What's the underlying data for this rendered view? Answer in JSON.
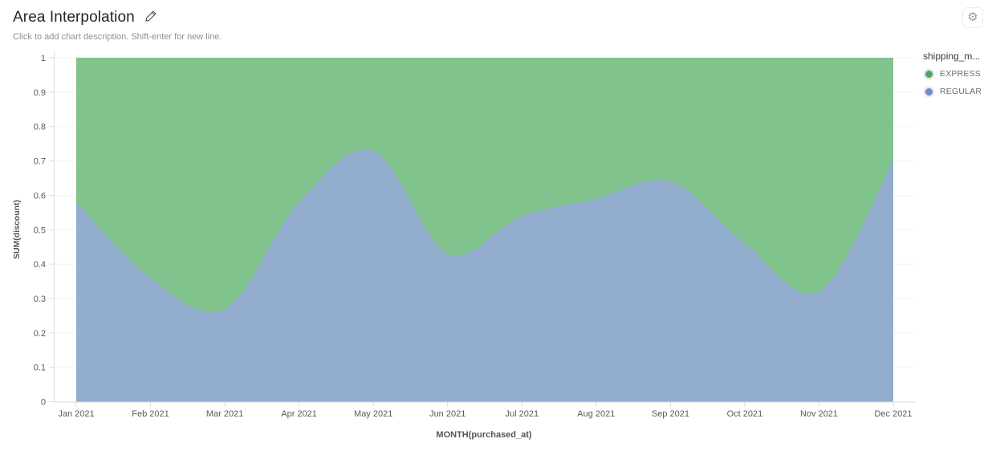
{
  "header": {
    "title": "Area Interpolation",
    "subtitle": "Click to add chart description. Shift-enter for new line."
  },
  "toolbar": {
    "settings_icon": "gear"
  },
  "legend": {
    "title": "shipping_m...",
    "items": [
      {
        "label": "EXPRESS",
        "color": "#4CA85E"
      },
      {
        "label": "REGULAR",
        "color": "#6D8EC4"
      }
    ]
  },
  "chart_data": {
    "type": "area",
    "variant": "100%-stacked",
    "interpolation": "smooth",
    "title": "Area Interpolation",
    "xlabel": "MONTH(purchased_at)",
    "ylabel": "SUM(discount)",
    "x": [
      "Jan 2021",
      "Feb 2021",
      "Mar 2021",
      "Apr 2021",
      "May 2021",
      "Jun 2021",
      "Jul 2021",
      "Aug 2021",
      "Sep 2021",
      "Oct 2021",
      "Nov 2021",
      "Dec 2021"
    ],
    "series": [
      {
        "name": "REGULAR",
        "fill": "#92ADCD",
        "values": [
          0.58,
          0.36,
          0.27,
          0.58,
          0.73,
          0.43,
          0.54,
          0.59,
          0.64,
          0.46,
          0.32,
          0.7
        ]
      },
      {
        "name": "EXPRESS",
        "fill": "#80C38C",
        "values": [
          0.42,
          0.64,
          0.73,
          0.42,
          0.27,
          0.57,
          0.46,
          0.41,
          0.36,
          0.54,
          0.68,
          0.3
        ]
      }
    ],
    "ylim": [
      0,
      1
    ],
    "y_ticks": [
      0,
      0.1,
      0.2,
      0.3,
      0.4,
      0.5,
      0.6,
      0.7,
      0.8,
      0.9,
      1
    ],
    "grid": true,
    "legend_position": "right",
    "colors": {
      "axis_line": "#dcdcdc",
      "grid_line": "#f4f3f4",
      "tick_label": "#595959",
      "axis_title": "#555555"
    }
  }
}
